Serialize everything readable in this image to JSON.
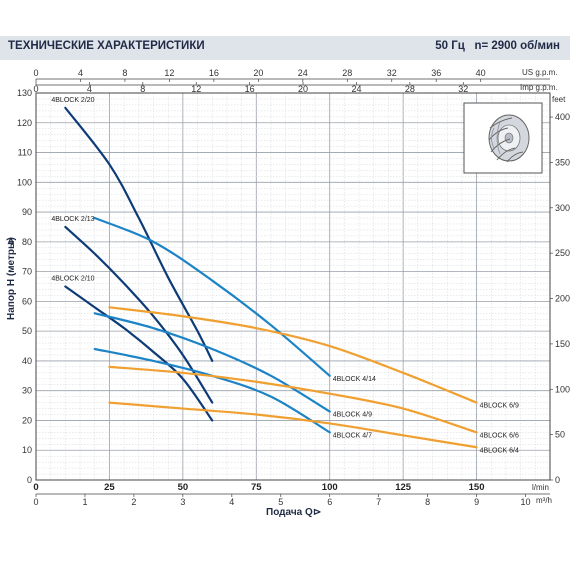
{
  "header": {
    "title": "ТЕХНИЧЕСКИЕ ХАРАКТЕРИСТИКИ",
    "freq": "50 Гц",
    "speed": "n= 2900 об/мин"
  },
  "chart_data": {
    "type": "line",
    "xlabel": "Подача Q",
    "ylabel": "Напор H (метры)",
    "x_unit": "l/min",
    "x_unit_m3h": "m³/h",
    "x_unit_us": "US g.p.m.",
    "x_unit_imp": "Imp g.p.m.",
    "y_unit_feet": "feet",
    "xlim": [
      0,
      175
    ],
    "ylim": [
      0,
      130
    ],
    "x_ticks": [
      0,
      25,
      50,
      75,
      100,
      125,
      150
    ],
    "y_ticks": [
      0,
      10,
      20,
      30,
      40,
      50,
      60,
      70,
      80,
      90,
      100,
      110,
      120,
      130
    ],
    "m3h_ticks": [
      "0",
      "1",
      "2",
      "3",
      "4",
      "5",
      "6",
      "7",
      "8",
      "9",
      "10"
    ],
    "us_ticks": [
      "0",
      "4",
      "8",
      "12",
      "16",
      "20",
      "24",
      "28",
      "32",
      "36",
      "40"
    ],
    "imp_ticks": [
      "0",
      "4",
      "8",
      "12",
      "16",
      "20",
      "24",
      "28",
      "32"
    ],
    "feet_ticks": [
      "0",
      "50",
      "100",
      "150",
      "200",
      "250",
      "300",
      "350",
      "400"
    ],
    "series": [
      {
        "name": "4BLOCK 2/20",
        "color": "#0d3b78",
        "x": [
          10,
          25,
          35,
          45,
          55,
          60
        ],
        "y": [
          125,
          106,
          88,
          68,
          50,
          40
        ]
      },
      {
        "name": "4BLOCK 2/13",
        "color": "#0d3b78",
        "x": [
          10,
          20,
          30,
          40,
          50,
          60
        ],
        "y": [
          85,
          76,
          66,
          55,
          42,
          26
        ]
      },
      {
        "name": "4BLOCK 2/10",
        "color": "#0d3b78",
        "x": [
          10,
          20,
          30,
          40,
          50,
          60
        ],
        "y": [
          65,
          58,
          51,
          43,
          34,
          20
        ]
      },
      {
        "name": "4BLOCK 4/14",
        "color": "#1c84c6",
        "x": [
          20,
          40,
          60,
          80,
          100
        ],
        "y": [
          88,
          80,
          67,
          52,
          35
        ]
      },
      {
        "name": "4BLOCK 4/9",
        "color": "#1c84c6",
        "x": [
          20,
          40,
          60,
          80,
          100
        ],
        "y": [
          56,
          51,
          44,
          35,
          23
        ]
      },
      {
        "name": "4BLOCK 4/7",
        "color": "#1c84c6",
        "x": [
          20,
          40,
          60,
          80,
          100
        ],
        "y": [
          44,
          40,
          35,
          28,
          16
        ]
      },
      {
        "name": "4BLOCK 6/9",
        "color": "#f0a030",
        "x": [
          25,
          50,
          75,
          100,
          125,
          150
        ],
        "y": [
          58,
          55,
          51,
          45,
          36,
          26
        ]
      },
      {
        "name": "4BLOCK 6/6",
        "color": "#f0a030",
        "x": [
          25,
          50,
          75,
          100,
          125,
          150
        ],
        "y": [
          38,
          36,
          33,
          29,
          24,
          16
        ]
      },
      {
        "name": "4BLOCK 6/4",
        "color": "#f0a030",
        "x": [
          25,
          50,
          75,
          100,
          125,
          150
        ],
        "y": [
          26,
          24,
          22,
          19,
          15,
          11
        ]
      }
    ]
  }
}
